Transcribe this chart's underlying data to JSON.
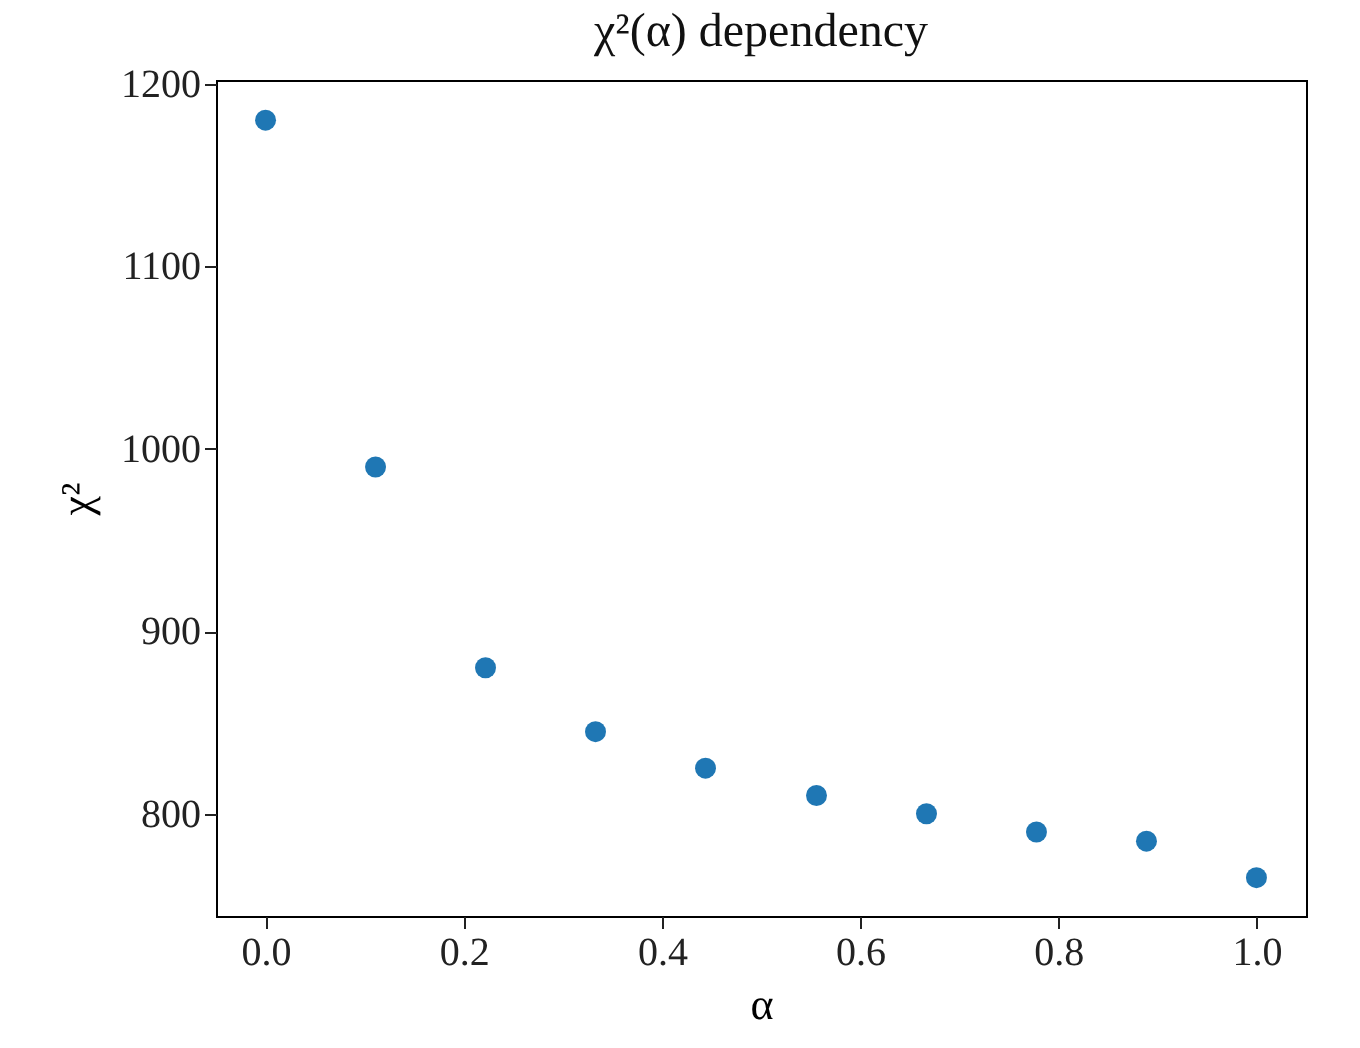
{
  "chart_data": {
    "type": "scatter",
    "title": "χ²(α) dependency",
    "xlabel": "α",
    "ylabel": "χ²",
    "x": [
      0,
      0.111,
      0.222,
      0.333,
      0.444,
      0.556,
      0.667,
      0.778,
      0.889,
      1.0
    ],
    "series": [
      {
        "color": "#1f77b4",
        "values": [
          1180,
          990,
          880,
          845,
          825,
          810,
          800,
          790,
          785,
          765
        ]
      }
    ],
    "xlim": [
      -0.05,
      1.05
    ],
    "ylim": [
      744,
      1202
    ],
    "xticks": [
      {
        "value": 0,
        "label": "0.0"
      },
      {
        "value": 0.2,
        "label": "0.2"
      },
      {
        "value": 0.4,
        "label": "0.4"
      },
      {
        "value": 0.6,
        "label": "0.6"
      },
      {
        "value": 0.8,
        "label": "0.8"
      },
      {
        "value": 1,
        "label": "1.0"
      }
    ],
    "yticks": [
      800,
      900,
      1000,
      1100,
      1200
    ],
    "grid": false,
    "marker": "circle"
  }
}
